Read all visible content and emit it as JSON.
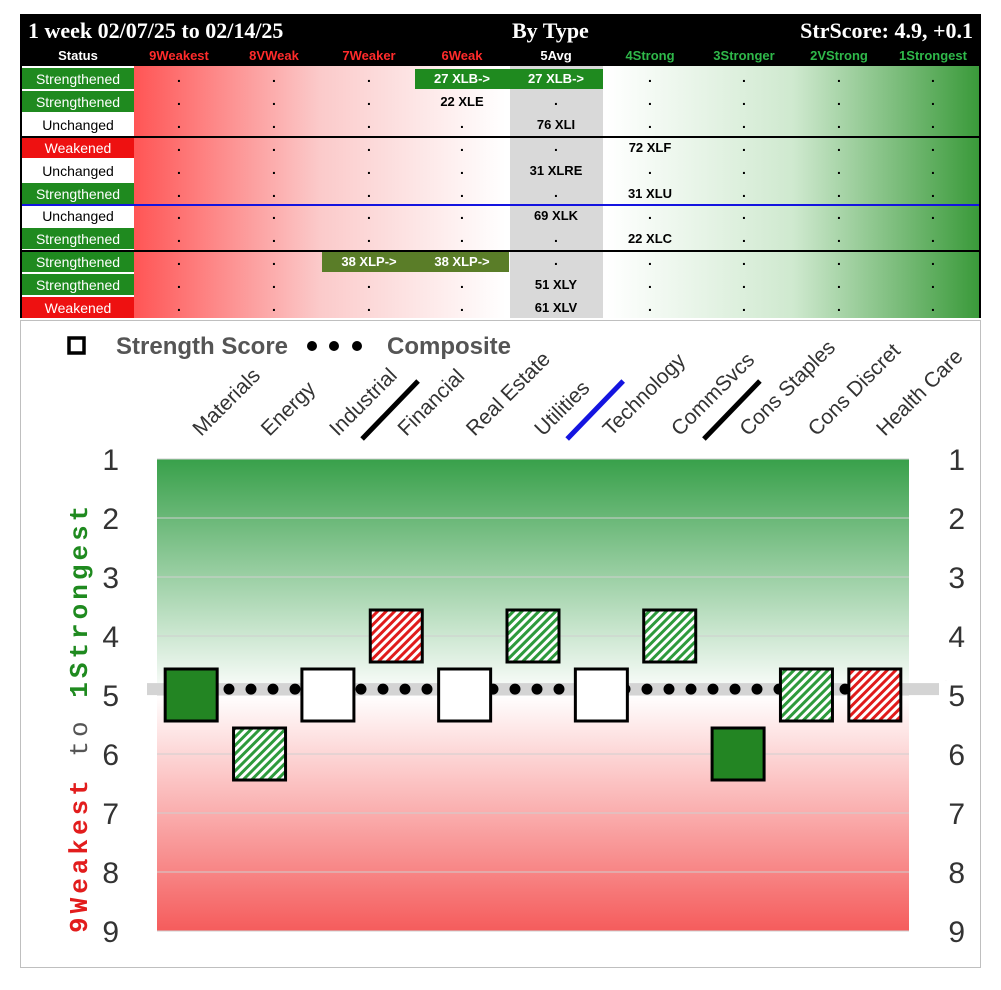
{
  "header": {
    "period": "1 week 02/07/25 to 02/14/25",
    "view": "By Type",
    "score": "StrScore: 4.9, +0.1"
  },
  "columns": [
    "Status",
    "9Weakest",
    "8VWeak",
    "7Weaker",
    "6Weak",
    "5Avg",
    "4Strong",
    "3Stronger",
    "2VStrong",
    "1Strongest"
  ],
  "column_colors": {
    "weak": "#ff2b2b",
    "avg": "#ffffff",
    "strong": "#2fb84a",
    "status": "#ffffff"
  },
  "rows": [
    {
      "status": "Strengthened",
      "items": [
        {
          "col": 6,
          "text": "27 XLB->",
          "style": "green"
        },
        {
          "col": 5,
          "text": "27 XLB->",
          "style": "green"
        }
      ]
    },
    {
      "status": "Strengthened",
      "items": [
        {
          "col": 6,
          "text": "22 XLE",
          "style": "plain"
        }
      ]
    },
    {
      "status": "Unchanged",
      "items": [
        {
          "col": 5,
          "text": "76 XLI",
          "style": "plain"
        }
      ]
    },
    {
      "status": "Weakened",
      "items": [
        {
          "col": 4,
          "text": "72 XLF",
          "style": "plain"
        }
      ]
    },
    {
      "status": "Unchanged",
      "items": [
        {
          "col": 5,
          "text": "31 XLRE",
          "style": "plain"
        }
      ]
    },
    {
      "status": "Strengthened",
      "items": [
        {
          "col": 4,
          "text": "31 XLU",
          "style": "plain"
        }
      ]
    },
    {
      "status": "Unchanged",
      "items": [
        {
          "col": 5,
          "text": "69 XLK",
          "style": "plain"
        }
      ]
    },
    {
      "status": "Strengthened",
      "items": [
        {
          "col": 4,
          "text": "22 XLC",
          "style": "plain"
        }
      ]
    },
    {
      "status": "Strengthened",
      "items": [
        {
          "col": 7,
          "text": "38 XLP->",
          "style": "olive"
        },
        {
          "col": 6,
          "text": "38 XLP->",
          "style": "olive"
        }
      ]
    },
    {
      "status": "Strengthened",
      "items": [
        {
          "col": 5,
          "text": "51 XLY",
          "style": "plain"
        }
      ]
    },
    {
      "status": "Weakened",
      "items": [
        {
          "col": 5,
          "text": "61 XLV",
          "style": "plain"
        }
      ]
    }
  ],
  "chart_data": {
    "type": "scatter",
    "legend": [
      "Strength Score",
      "Composite"
    ],
    "categories": [
      "Materials",
      "Energy",
      "Industrial",
      "Financial",
      "Real Estate",
      "Utilities",
      "Technology",
      "CommSvcs",
      "Cons Staples",
      "Cons Discret",
      "Health Care"
    ],
    "strength_score": [
      5,
      6,
      5,
      4,
      5,
      4,
      5,
      4,
      6,
      5,
      5
    ],
    "marker_style": [
      "solid-green",
      "hatch-green",
      "open",
      "hatch-red",
      "open",
      "hatch-green",
      "open",
      "hatch-green",
      "solid-green",
      "hatch-green",
      "hatch-red"
    ],
    "composite": 4.9,
    "composite_labels": [
      "4.9"
    ],
    "y_axis_label_weak": "9Weakest",
    "y_axis_label_to": "to",
    "y_axis_label_strong": "1Strongest",
    "ylim": [
      9,
      1
    ],
    "yticks": [
      1,
      2,
      3,
      4,
      5,
      6,
      7,
      8,
      9
    ],
    "separators": [
      {
        "after": "Industrial",
        "color": "#000000"
      },
      {
        "after": "Utilities",
        "color": "#1414e0"
      },
      {
        "after": "CommSvcs",
        "color": "#000000"
      }
    ]
  }
}
